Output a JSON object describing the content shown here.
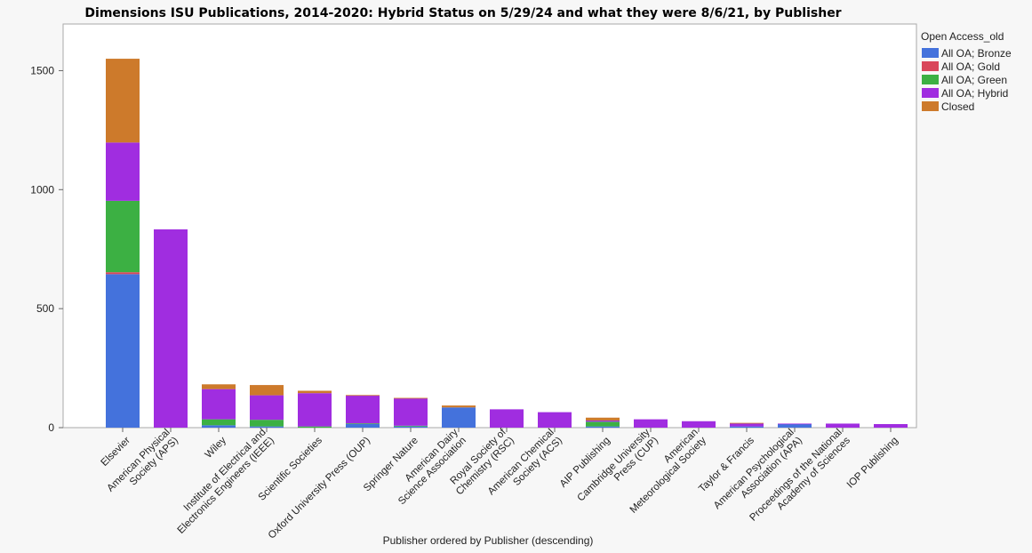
{
  "chart_data": {
    "type": "bar",
    "stacked": true,
    "title": "Dimensions ISU Publications, 2014-2020: Hybrid Status on 5/29/24 and what they were 8/6/21, by Publisher",
    "xlabel": "Publisher ordered by Publisher (descending)",
    "ylabel": "",
    "ylim": [
      0,
      1700
    ],
    "yticks": [
      0,
      500,
      1000,
      1500
    ],
    "grid": false,
    "legend_title": "Open Access_old",
    "legend_position": "right",
    "categories": [
      "Elsevier",
      "American Physical Society (APS)",
      "Wiley",
      "Institute of Electrical and Electronics Engineers (IEEE)",
      "Scientific Societies",
      "Oxford University Press (OUP)",
      "Springer Nature",
      "American Dairy Science Association",
      "Royal Society of Chemistry (RSC)",
      "American Chemical Society (ACS)",
      "AIP Publishing",
      "Cambridge University Press (CUP)",
      "American Meteorological Society",
      "Taylor & Francis",
      "American Psychological Association (APA)",
      "Proceedings of the National Academy of Sciences",
      "IOP Publishing"
    ],
    "category_label_lines": [
      [
        "Elsevier"
      ],
      [
        "American Physical",
        "Society (APS)"
      ],
      [
        "Wiley"
      ],
      [
        "Institute of Electrical and",
        "Electronics Engineers (IEEE)"
      ],
      [
        "Scientific Societies"
      ],
      [
        "Oxford University Press (OUP)"
      ],
      [
        "Springer Nature"
      ],
      [
        "American Dairy",
        "Science Association"
      ],
      [
        "Royal Society of",
        "Chemistry (RSC)"
      ],
      [
        "American Chemical",
        "Society (ACS)"
      ],
      [
        "AIP Publishing"
      ],
      [
        "Cambridge University",
        "Press (CUP)"
      ],
      [
        "American",
        "Meteorological Society"
      ],
      [
        "Taylor & Francis"
      ],
      [
        "American Psychological",
        "Association (APA)"
      ],
      [
        "Proceedings of the National",
        "Academy of Sciences"
      ],
      [
        "IOP Publishing"
      ]
    ],
    "series": [
      {
        "name": "All OA; Bronze",
        "color": "#4472dc",
        "values": [
          645,
          0,
          10,
          5,
          0,
          15,
          5,
          85,
          0,
          0,
          5,
          0,
          0,
          5,
          15,
          0,
          0
        ]
      },
      {
        "name": "All OA; Gold",
        "color": "#d9475b",
        "values": [
          8,
          0,
          0,
          0,
          0,
          0,
          0,
          0,
          0,
          0,
          0,
          0,
          0,
          0,
          0,
          0,
          0
        ]
      },
      {
        "name": "All OA; Green",
        "color": "#3cb043",
        "values": [
          300,
          0,
          25,
          28,
          5,
          3,
          3,
          0,
          0,
          0,
          20,
          0,
          0,
          0,
          0,
          0,
          0
        ]
      },
      {
        "name": "All OA; Hybrid",
        "color": "#a02de0",
        "values": [
          245,
          833,
          127,
          103,
          140,
          117,
          115,
          0,
          77,
          65,
          5,
          35,
          27,
          13,
          2,
          17,
          15
        ]
      },
      {
        "name": "Closed",
        "color": "#cd7a2b",
        "values": [
          352,
          0,
          20,
          43,
          10,
          2,
          2,
          8,
          0,
          0,
          12,
          0,
          0,
          2,
          0,
          0,
          0
        ]
      }
    ]
  }
}
